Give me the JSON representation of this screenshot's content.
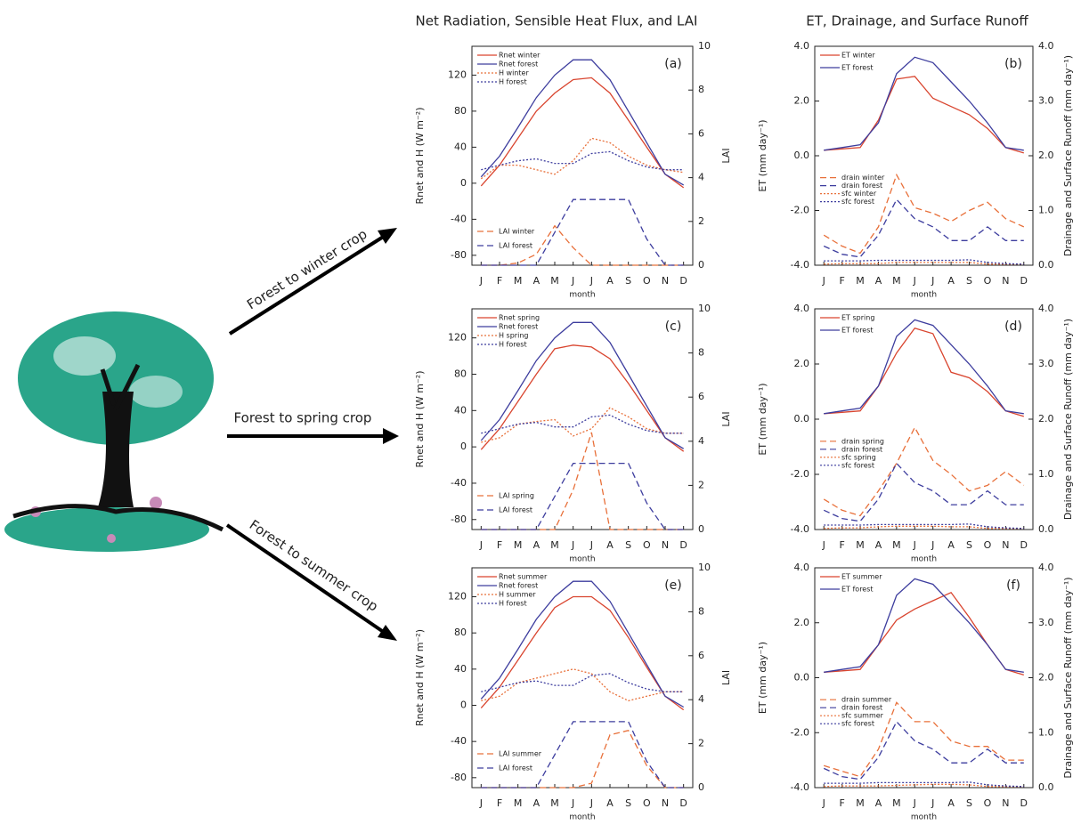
{
  "titles": [
    "Net Radiation, Sensible Heat Flux, and LAI",
    "ET, Drainage, and Surface Runoff"
  ],
  "arrows": [
    "Forest to winter crop",
    "Forest to spring crop",
    "Forest to summer crop"
  ],
  "chart_data": [
    {
      "type": "line",
      "panel": "(a)",
      "ylabel": "Rnet and H (W m⁻²)",
      "y2label": "LAI",
      "xlabel": "month",
      "categories": [
        "J",
        "F",
        "M",
        "A",
        "M",
        "J",
        "J",
        "A",
        "S",
        "O",
        "N",
        "D"
      ],
      "ylim": [
        -91,
        152
      ],
      "yticks": [
        -80,
        -40,
        0,
        40,
        80,
        120
      ],
      "y2lim": [
        0,
        10
      ],
      "y2ticks": [
        0,
        2,
        4,
        6,
        8,
        10
      ],
      "series": [
        {
          "name": "Rnet winter",
          "color": "#d9452f",
          "dash": "solid",
          "values": [
            -3,
            20,
            50,
            80,
            100,
            115,
            117,
            100,
            70,
            40,
            10,
            -5
          ]
        },
        {
          "name": "Rnet forest",
          "color": "#3d3d9e",
          "dash": "solid",
          "values": [
            7,
            30,
            62,
            95,
            120,
            137,
            137,
            115,
            80,
            45,
            10,
            -2
          ]
        },
        {
          "name": "H winter",
          "color": "#e8703a",
          "dash": "dotted",
          "values": [
            5,
            20,
            20,
            15,
            10,
            25,
            50,
            45,
            30,
            20,
            15,
            12
          ]
        },
        {
          "name": "H forest",
          "color": "#3d3d9e",
          "dash": "dotted",
          "values": [
            15,
            20,
            25,
            27,
            22,
            22,
            33,
            35,
            25,
            18,
            15,
            15
          ]
        },
        {
          "name": "LAI winter",
          "color": "#e8703a",
          "dash": "dashed",
          "axis": "y2",
          "values": [
            0,
            0,
            0.1,
            0.5,
            1.8,
            0.8,
            0,
            0,
            0,
            0,
            0,
            0
          ]
        },
        {
          "name": "LAI forest",
          "color": "#3d3d9e",
          "dash": "dashed",
          "axis": "y2",
          "values": [
            0,
            0,
            0,
            0,
            1.5,
            3,
            3,
            3,
            3,
            1.2,
            0,
            0
          ]
        }
      ]
    },
    {
      "type": "line",
      "panel": "(b)",
      "ylabel": "ET (mm day⁻¹)",
      "y2label": "Drainage and Surface Runoff (mm day⁻¹)",
      "xlabel": "month",
      "categories": [
        "J",
        "F",
        "M",
        "A",
        "M",
        "J",
        "J",
        "A",
        "S",
        "O",
        "N",
        "D"
      ],
      "ylim": [
        -4,
        4
      ],
      "yticks": [
        {
          "value": -4,
          "label": "-4.0"
        },
        {
          "value": -2,
          "label": "-2.0"
        },
        {
          "value": 0,
          "label": "0.0"
        },
        {
          "value": 2,
          "label": "2.0"
        },
        {
          "value": 4,
          "label": "4.0"
        }
      ],
      "y2lim": [
        0,
        4
      ],
      "y2ticks": [
        {
          "value": 0,
          "label": "0.0"
        },
        {
          "value": 1,
          "label": "1.0"
        },
        {
          "value": 2,
          "label": "2.0"
        },
        {
          "value": 3,
          "label": "3.0"
        },
        {
          "value": 4,
          "label": "4.0"
        }
      ],
      "series": [
        {
          "name": "ET winter",
          "color": "#d9452f",
          "dash": "solid",
          "values": [
            0.2,
            0.25,
            0.3,
            1.3,
            2.8,
            2.9,
            2.1,
            1.8,
            1.5,
            1.0,
            0.3,
            0.1
          ]
        },
        {
          "name": "ET forest",
          "color": "#3d3d9e",
          "dash": "solid",
          "values": [
            0.2,
            0.3,
            0.4,
            1.2,
            3.0,
            3.6,
            3.4,
            2.7,
            2.0,
            1.2,
            0.3,
            0.2
          ]
        },
        {
          "name": "drain winter",
          "color": "#e8703a",
          "dash": "dashed",
          "axis": "y2",
          "values": [
            0.55,
            0.35,
            0.22,
            0.7,
            1.65,
            1.05,
            0.95,
            0.8,
            1.0,
            1.15,
            0.85,
            0.7
          ]
        },
        {
          "name": "drain forest",
          "color": "#3d3d9e",
          "dash": "dashed",
          "axis": "y2",
          "values": [
            0.35,
            0.2,
            0.15,
            0.55,
            1.2,
            0.85,
            0.7,
            0.45,
            0.45,
            0.7,
            0.45,
            0.45
          ]
        },
        {
          "name": "sfc winter",
          "color": "#e8703a",
          "dash": "dotted",
          "axis": "y2",
          "values": [
            0.02,
            0.03,
            0.03,
            0.03,
            0.05,
            0.05,
            0.05,
            0.05,
            0.05,
            0.02,
            0.02,
            0.02
          ]
        },
        {
          "name": "sfc forest",
          "color": "#3d3d9e",
          "dash": "dotted",
          "axis": "y2",
          "values": [
            0.08,
            0.08,
            0.08,
            0.09,
            0.09,
            0.09,
            0.09,
            0.09,
            0.1,
            0.05,
            0.03,
            0.02
          ]
        }
      ]
    },
    {
      "type": "line",
      "panel": "(c)",
      "ylabel": "Rnet and H (W m⁻²)",
      "y2label": "LAI",
      "xlabel": "month",
      "categories": [
        "J",
        "F",
        "M",
        "A",
        "M",
        "J",
        "J",
        "A",
        "S",
        "O",
        "N",
        "D"
      ],
      "ylim": [
        -91,
        152
      ],
      "yticks": [
        -80,
        -40,
        0,
        40,
        80,
        120
      ],
      "y2lim": [
        0,
        10
      ],
      "y2ticks": [
        0,
        2,
        4,
        6,
        8,
        10
      ],
      "series": [
        {
          "name": "Rnet spring",
          "color": "#d9452f",
          "dash": "solid",
          "values": [
            -3,
            20,
            50,
            80,
            108,
            112,
            110,
            97,
            70,
            40,
            10,
            -5
          ]
        },
        {
          "name": "Rnet forest",
          "color": "#3d3d9e",
          "dash": "solid",
          "values": [
            7,
            30,
            62,
            95,
            120,
            137,
            137,
            115,
            80,
            45,
            10,
            -2
          ]
        },
        {
          "name": "H spring",
          "color": "#e8703a",
          "dash": "dotted",
          "values": [
            5,
            10,
            25,
            28,
            30,
            12,
            20,
            43,
            33,
            20,
            15,
            15
          ]
        },
        {
          "name": "H forest",
          "color": "#3d3d9e",
          "dash": "dotted",
          "values": [
            15,
            20,
            25,
            27,
            22,
            22,
            33,
            35,
            25,
            18,
            15,
            15
          ]
        },
        {
          "name": "LAI spring",
          "color": "#e8703a",
          "dash": "dashed",
          "axis": "y2",
          "values": [
            0,
            0,
            0,
            0,
            0,
            1.8,
            4.4,
            0,
            0,
            0,
            0,
            0
          ]
        },
        {
          "name": "LAI forest",
          "color": "#3d3d9e",
          "dash": "dashed",
          "axis": "y2",
          "values": [
            0,
            0,
            0,
            0,
            1.5,
            3,
            3,
            3,
            3,
            1.2,
            0,
            0
          ]
        }
      ]
    },
    {
      "type": "line",
      "panel": "(d)",
      "ylabel": "ET (mm day⁻¹)",
      "y2label": "Drainage and Surface Runoff (mm day⁻¹)",
      "xlabel": "month",
      "categories": [
        "J",
        "F",
        "M",
        "A",
        "M",
        "J",
        "J",
        "A",
        "S",
        "O",
        "N",
        "D"
      ],
      "ylim": [
        -4,
        4
      ],
      "yticks": [
        {
          "value": -4,
          "label": "-4.0"
        },
        {
          "value": -2,
          "label": "-2.0"
        },
        {
          "value": 0,
          "label": "0.0"
        },
        {
          "value": 2,
          "label": "2.0"
        },
        {
          "value": 4,
          "label": "4.0"
        }
      ],
      "y2lim": [
        0,
        4
      ],
      "y2ticks": [
        {
          "value": 0,
          "label": "0.0"
        },
        {
          "value": 1,
          "label": "1.0"
        },
        {
          "value": 2,
          "label": "2.0"
        },
        {
          "value": 3,
          "label": "3.0"
        },
        {
          "value": 4,
          "label": "4.0"
        }
      ],
      "series": [
        {
          "name": "ET spring",
          "color": "#d9452f",
          "dash": "solid",
          "values": [
            0.2,
            0.25,
            0.3,
            1.2,
            2.4,
            3.3,
            3.1,
            1.7,
            1.5,
            1.0,
            0.3,
            0.1
          ]
        },
        {
          "name": "ET forest",
          "color": "#3d3d9e",
          "dash": "solid",
          "values": [
            0.2,
            0.3,
            0.4,
            1.2,
            3.0,
            3.6,
            3.4,
            2.7,
            2.0,
            1.2,
            0.3,
            0.2
          ]
        },
        {
          "name": "drain spring",
          "color": "#e8703a",
          "dash": "dashed",
          "axis": "y2",
          "values": [
            0.55,
            0.35,
            0.25,
            0.7,
            1.2,
            1.85,
            1.25,
            1.0,
            0.7,
            0.8,
            1.05,
            0.8
          ]
        },
        {
          "name": "drain forest",
          "color": "#3d3d9e",
          "dash": "dashed",
          "axis": "y2",
          "values": [
            0.35,
            0.2,
            0.15,
            0.55,
            1.2,
            0.85,
            0.7,
            0.45,
            0.45,
            0.7,
            0.45,
            0.45
          ]
        },
        {
          "name": "sfc spring",
          "color": "#e8703a",
          "dash": "dotted",
          "axis": "y2",
          "values": [
            0.02,
            0.03,
            0.03,
            0.05,
            0.06,
            0.06,
            0.06,
            0.05,
            0.05,
            0.02,
            0.02,
            0.02
          ]
        },
        {
          "name": "sfc forest",
          "color": "#3d3d9e",
          "dash": "dotted",
          "axis": "y2",
          "values": [
            0.08,
            0.08,
            0.08,
            0.09,
            0.09,
            0.09,
            0.09,
            0.09,
            0.1,
            0.05,
            0.03,
            0.02
          ]
        }
      ]
    },
    {
      "type": "line",
      "panel": "(e)",
      "ylabel": "Rnet and H (W m⁻²)",
      "y2label": "LAI",
      "xlabel": "month",
      "categories": [
        "J",
        "F",
        "M",
        "A",
        "M",
        "J",
        "J",
        "A",
        "S",
        "O",
        "N",
        "D"
      ],
      "ylim": [
        -91,
        152
      ],
      "yticks": [
        -80,
        -40,
        0,
        40,
        80,
        120
      ],
      "y2lim": [
        0,
        10
      ],
      "y2ticks": [
        0,
        2,
        4,
        6,
        8,
        10
      ],
      "series": [
        {
          "name": "Rnet summer",
          "color": "#d9452f",
          "dash": "solid",
          "values": [
            -3,
            20,
            50,
            80,
            108,
            120,
            120,
            105,
            75,
            42,
            10,
            -5
          ]
        },
        {
          "name": "Rnet forest",
          "color": "#3d3d9e",
          "dash": "solid",
          "values": [
            7,
            30,
            62,
            95,
            120,
            137,
            137,
            115,
            80,
            45,
            10,
            -2
          ]
        },
        {
          "name": "H summer",
          "color": "#e8703a",
          "dash": "dotted",
          "values": [
            5,
            10,
            25,
            30,
            35,
            40,
            35,
            15,
            5,
            10,
            15,
            15
          ]
        },
        {
          "name": "H forest",
          "color": "#3d3d9e",
          "dash": "dotted",
          "values": [
            15,
            20,
            25,
            27,
            22,
            22,
            33,
            35,
            25,
            18,
            15,
            15
          ]
        },
        {
          "name": "LAI summer",
          "color": "#e8703a",
          "dash": "dashed",
          "axis": "y2",
          "values": [
            0,
            0,
            0,
            0,
            0,
            0,
            0.2,
            2.4,
            2.6,
            1.0,
            0,
            0
          ]
        },
        {
          "name": "LAI forest",
          "color": "#3d3d9e",
          "dash": "dashed",
          "axis": "y2",
          "values": [
            0,
            0,
            0,
            0,
            1.5,
            3,
            3,
            3,
            3,
            1.2,
            0,
            0
          ]
        }
      ]
    },
    {
      "type": "line",
      "panel": "(f)",
      "ylabel": "ET (mm day⁻¹)",
      "y2label": "Drainage and Surface Runoff (mm day⁻¹)",
      "xlabel": "month",
      "categories": [
        "J",
        "F",
        "M",
        "A",
        "M",
        "J",
        "J",
        "A",
        "S",
        "O",
        "N",
        "D"
      ],
      "ylim": [
        -4,
        4
      ],
      "yticks": [
        {
          "value": -4,
          "label": "-4.0"
        },
        {
          "value": -2,
          "label": "-2.0"
        },
        {
          "value": 0,
          "label": "0.0"
        },
        {
          "value": 2,
          "label": "2.0"
        },
        {
          "value": 4,
          "label": "4.0"
        }
      ],
      "y2lim": [
        0,
        4
      ],
      "y2ticks": [
        {
          "value": 0,
          "label": "0.0"
        },
        {
          "value": 1,
          "label": "1.0"
        },
        {
          "value": 2,
          "label": "2.0"
        },
        {
          "value": 3,
          "label": "3.0"
        },
        {
          "value": 4,
          "label": "4.0"
        }
      ],
      "series": [
        {
          "name": "ET summer",
          "color": "#d9452f",
          "dash": "solid",
          "values": [
            0.2,
            0.25,
            0.3,
            1.2,
            2.1,
            2.5,
            2.8,
            3.1,
            2.2,
            1.2,
            0.3,
            0.1
          ]
        },
        {
          "name": "ET forest",
          "color": "#3d3d9e",
          "dash": "solid",
          "values": [
            0.2,
            0.3,
            0.4,
            1.2,
            3.0,
            3.6,
            3.4,
            2.7,
            2.0,
            1.2,
            0.3,
            0.2
          ]
        },
        {
          "name": "drain summer",
          "color": "#e8703a",
          "dash": "dashed",
          "axis": "y2",
          "values": [
            0.4,
            0.3,
            0.2,
            0.7,
            1.55,
            1.2,
            1.2,
            0.85,
            0.75,
            0.75,
            0.5,
            0.5
          ]
        },
        {
          "name": "drain forest",
          "color": "#3d3d9e",
          "dash": "dashed",
          "axis": "y2",
          "values": [
            0.35,
            0.2,
            0.15,
            0.55,
            1.2,
            0.85,
            0.7,
            0.45,
            0.45,
            0.7,
            0.45,
            0.45
          ]
        },
        {
          "name": "sfc summer",
          "color": "#e8703a",
          "dash": "dotted",
          "axis": "y2",
          "values": [
            0.02,
            0.03,
            0.03,
            0.03,
            0.04,
            0.05,
            0.06,
            0.06,
            0.05,
            0.02,
            0.02,
            0.02
          ]
        },
        {
          "name": "sfc forest",
          "color": "#3d3d9e",
          "dash": "dotted",
          "axis": "y2",
          "values": [
            0.08,
            0.08,
            0.08,
            0.09,
            0.09,
            0.09,
            0.09,
            0.09,
            0.1,
            0.05,
            0.03,
            0.02
          ]
        }
      ]
    }
  ]
}
